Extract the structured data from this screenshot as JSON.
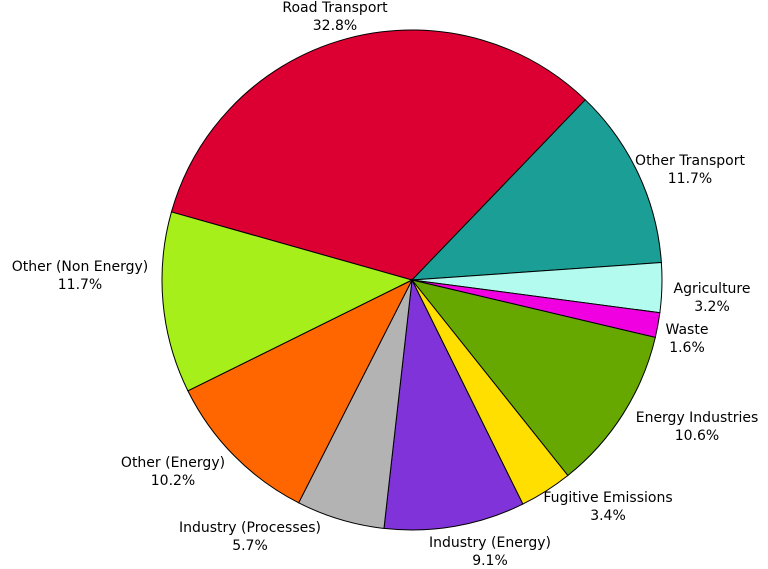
{
  "chart_data": {
    "type": "pie",
    "categories": [
      "Road Transport",
      "Other Transport",
      "Agriculture",
      "Waste",
      "Energy Industries",
      "Fugitive Emissions",
      "Industry (Energy)",
      "Industry (Processes)",
      "Other (Energy)",
      "Other (Non Energy)"
    ],
    "values": [
      32.8,
      11.7,
      3.2,
      1.6,
      10.6,
      3.4,
      9.1,
      5.7,
      10.2,
      11.7
    ],
    "value_labels": [
      "32.8%",
      "11.7%",
      "3.2%",
      "1.6%",
      "10.6%",
      "3.4%",
      "9.1%",
      "5.7%",
      "10.2%",
      "11.7%"
    ],
    "colors": [
      "#dc0032",
      "#1a9e96",
      "#b3fbee",
      "#f000e0",
      "#66a800",
      "#ffdf00",
      "#7f33d8",
      "#b3b3b3",
      "#ff6600",
      "#a6ef1a"
    ]
  }
}
